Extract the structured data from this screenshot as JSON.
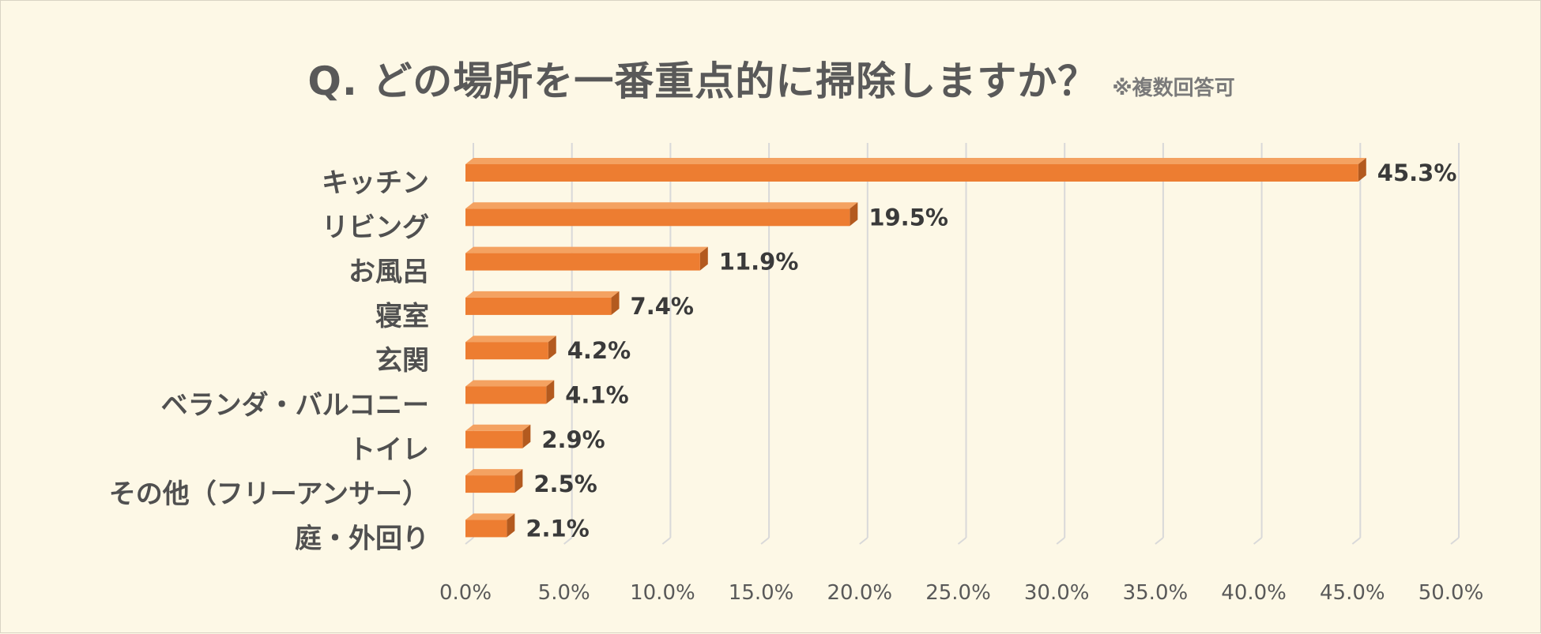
{
  "title": "Q. どの場所を一番重点的に掃除しますか？",
  "subtitle": "※複数回答可",
  "colors": {
    "background": "#fdf8e6",
    "bar_front": "#ed7d31",
    "bar_top": "#f4a261",
    "bar_side": "#b35a1f",
    "gridline": "#d9d9d9"
  },
  "chart_data": {
    "type": "bar",
    "orientation": "horizontal",
    "categories": [
      "キッチン",
      "リビング",
      "お風呂",
      "寝室",
      "玄関",
      "ベランダ・バルコニー",
      "トイレ",
      "その他（フリーアンサー）",
      "庭・外回り"
    ],
    "values": [
      45.3,
      19.5,
      11.9,
      7.4,
      4.2,
      4.1,
      2.9,
      2.5,
      2.1
    ],
    "value_labels": [
      "45.3%",
      "19.5%",
      "11.9%",
      "7.4%",
      "4.2%",
      "4.1%",
      "2.9%",
      "2.5%",
      "2.1%"
    ],
    "x_ticks": [
      "0.0%",
      "5.0%",
      "10.0%",
      "15.0%",
      "20.0%",
      "25.0%",
      "30.0%",
      "35.0%",
      "40.0%",
      "45.0%",
      "50.0%"
    ],
    "xlim": [
      0,
      50
    ],
    "grid": true,
    "legend": "none"
  }
}
